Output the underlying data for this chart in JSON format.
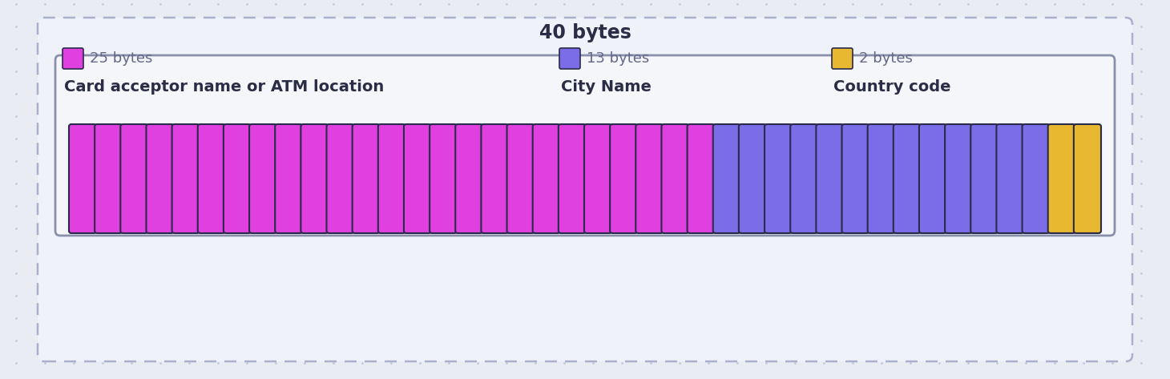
{
  "title": "40 bytes",
  "background_color": "#eaecf4",
  "dot_grid_color": "#c5c9dc",
  "outer_dashed_box_color": "#f0f2fa",
  "outer_dashed_box_border": "#aab0cc",
  "solid_bracket_color": "#8890aa",
  "solid_bracket_bg": "#f4f6fa",
  "inner_bracket_fill": "#f4f6fa",
  "segments": [
    {
      "label": "Card acceptor name or ATM location",
      "bytes": 25,
      "color": "#e040e0",
      "border": "#2a2a4a",
      "legend_label": "25 bytes"
    },
    {
      "label": "City Name",
      "bytes": 13,
      "color": "#7b6de8",
      "border": "#2a2a4a",
      "legend_label": "13 bytes"
    },
    {
      "label": "Country code",
      "bytes": 2,
      "color": "#e8b830",
      "border": "#2a2a4a",
      "legend_label": "2 bytes"
    }
  ],
  "total_bytes": 40,
  "title_fontsize": 17,
  "label_fontsize": 14,
  "legend_fontsize": 13,
  "text_color": "#2a2d45",
  "legend_text_color": "#666888"
}
